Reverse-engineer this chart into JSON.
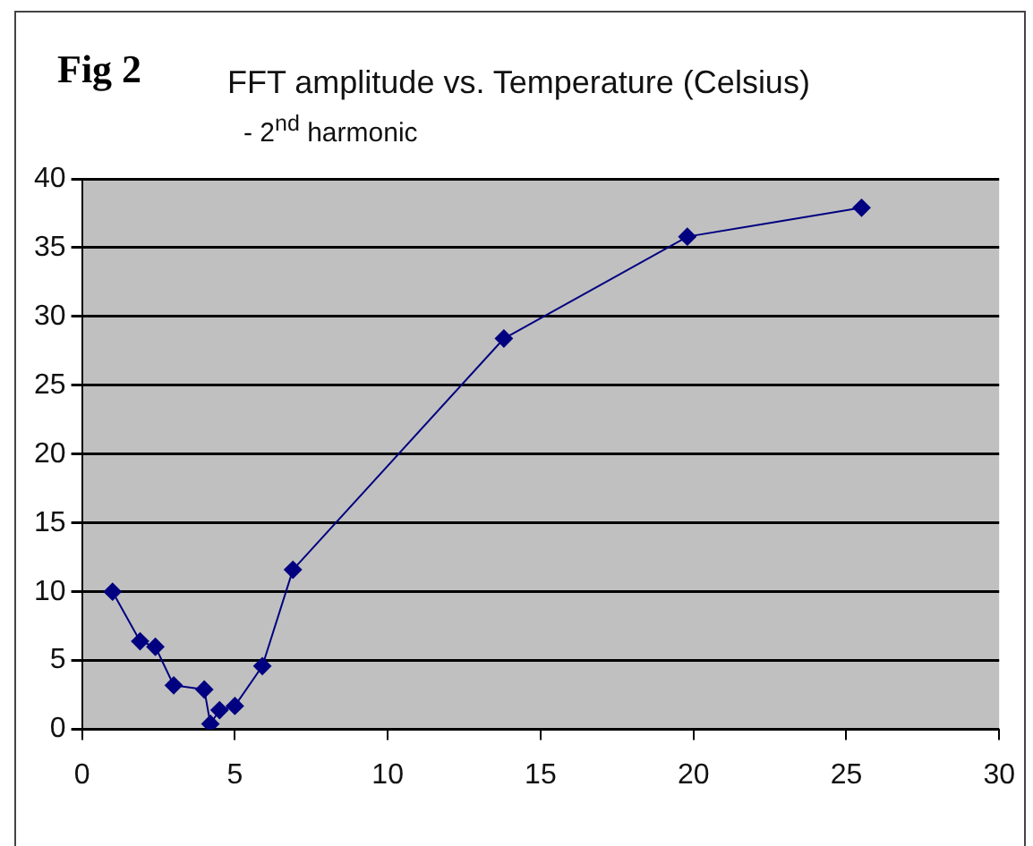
{
  "chart_data": {
    "type": "line",
    "title": "FFT amplitude vs. Temperature (Celsius)",
    "subtitle": "- 2$^{nd}$ harmonic",
    "annotations": [
      "Fig 2"
    ],
    "x": [
      1.0,
      1.9,
      2.4,
      3.0,
      4.0,
      4.2,
      4.5,
      5.0,
      5.9,
      6.9,
      13.8,
      19.8,
      25.5
    ],
    "series": [
      {
        "color": "#000080",
        "values": [
          10.0,
          6.4,
          6.0,
          3.2,
          2.9,
          0.4,
          1.4,
          1.7,
          4.6,
          11.6,
          28.4,
          35.8,
          37.9
        ]
      }
    ],
    "xlim": [
      0,
      30
    ],
    "xticks": [
      0,
      5,
      10,
      15,
      20,
      25,
      30
    ],
    "ylim": [
      0,
      40
    ],
    "yticks": [
      0,
      5,
      10,
      15,
      20,
      25,
      30,
      35,
      40
    ],
    "grid": "y",
    "legend": false,
    "marker": "diamond",
    "line_style": "solid"
  }
}
